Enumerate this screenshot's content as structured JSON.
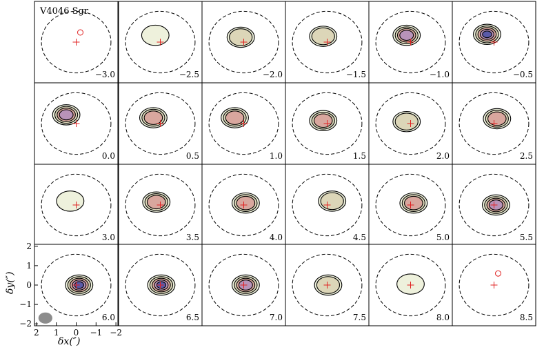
{
  "chart_data": {
    "type": "contour_channel_map",
    "title": "V4046 Sgr",
    "xlabel": "δx(″)",
    "ylabel": "δy(″)",
    "x_ticks": [
      "2",
      "1",
      "0",
      "−1",
      "−2"
    ],
    "y_ticks": [
      "2",
      "1",
      "0",
      "−1",
      "−2"
    ],
    "xlim": [
      2.1,
      -2.1
    ],
    "ylim": [
      -2.1,
      2.1
    ],
    "grid": {
      "rows": 4,
      "cols": 6
    },
    "colors": {
      "contour": "#000000",
      "negative_contour": "#e02020",
      "center_marker": "#e02020",
      "ellipse": "#000000",
      "fill_levels": [
        "#eef1dc",
        "#dcd6b8",
        "#d9a79e",
        "#b893b9",
        "#5a5aa8"
      ],
      "beam": "#8c8c8c"
    },
    "panels": [
      {
        "label": "−3.0",
        "level": 0,
        "cx": 0,
        "cy": 0
      },
      {
        "label": "−2.5",
        "level": 1,
        "cx": 0.25,
        "cy": 0.35
      },
      {
        "label": "−2.0",
        "level": 2,
        "cx": 0.15,
        "cy": 0.25
      },
      {
        "label": "−1.5",
        "level": 2,
        "cx": 0.2,
        "cy": 0.3
      },
      {
        "label": "−1.0",
        "level": 4,
        "cx": 0.2,
        "cy": 0.35
      },
      {
        "label": "−0.5",
        "level": 5,
        "cx": 0.35,
        "cy": 0.4
      },
      {
        "label": "0.0",
        "level": 4,
        "cx": 0.5,
        "cy": 0.45
      },
      {
        "label": "0.5",
        "level": 3,
        "cx": 0.35,
        "cy": 0.3
      },
      {
        "label": "1.0",
        "level": 3,
        "cx": 0.45,
        "cy": 0.3
      },
      {
        "label": "1.5",
        "level": 3,
        "cx": 0.2,
        "cy": 0.15
      },
      {
        "label": "2.0",
        "level": 2,
        "cx": 0.2,
        "cy": 0.1
      },
      {
        "label": "2.5",
        "level": 3,
        "cx": -0.15,
        "cy": 0.25
      },
      {
        "label": "3.0",
        "level": 1,
        "cx": 0.3,
        "cy": 0.2
      },
      {
        "label": "3.5",
        "level": 3,
        "cx": 0.2,
        "cy": 0.15
      },
      {
        "label": "4.0",
        "level": 3,
        "cx": -0.1,
        "cy": 0.1
      },
      {
        "label": "4.5",
        "level": 2,
        "cx": -0.25,
        "cy": 0.2
      },
      {
        "label": "5.0",
        "level": 3,
        "cx": -0.15,
        "cy": 0.1
      },
      {
        "label": "5.5",
        "level": 4,
        "cx": -0.1,
        "cy": 0
      },
      {
        "label": "6.0",
        "level": 5,
        "cx": -0.15,
        "cy": 0
      },
      {
        "label": "6.5",
        "level": 5,
        "cx": -0.05,
        "cy": 0
      },
      {
        "label": "7.0",
        "level": 4,
        "cx": -0.1,
        "cy": 0
      },
      {
        "label": "7.5",
        "level": 2,
        "cx": -0.05,
        "cy": 0
      },
      {
        "label": "8.0",
        "level": 1,
        "cx": 0,
        "cy": 0.05
      },
      {
        "label": "8.5",
        "level": 0,
        "cx": 0,
        "cy": 0.1
      }
    ]
  }
}
